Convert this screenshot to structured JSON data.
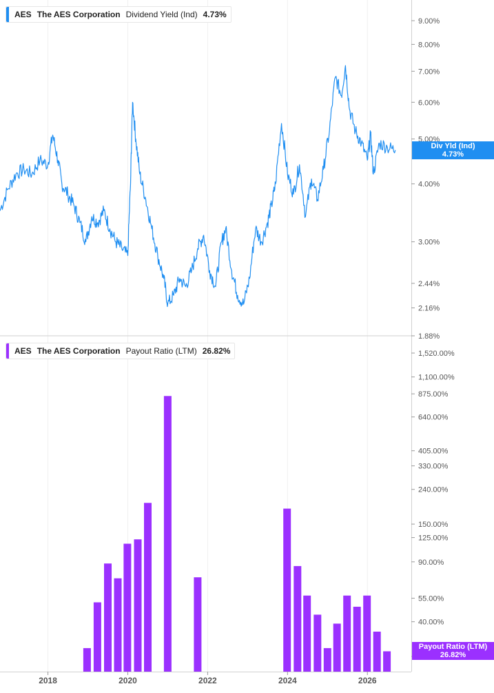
{
  "chart_data": [
    {
      "type": "line",
      "ticker": "AES",
      "company": "The AES Corporation",
      "metric": "Dividend Yield (Ind)",
      "current_value": "4.73%",
      "tag_label": "Div Yld (Ind)",
      "tag_value": "4.73%",
      "color": "#1f8ef1",
      "y_scale": "log",
      "y_ticks": [
        "9.00%",
        "8.00%",
        "7.00%",
        "6.00%",
        "5.00%",
        "4.00%",
        "3.00%",
        "2.44%",
        "2.16%",
        "1.88%"
      ],
      "y_tick_values": [
        9.0,
        8.0,
        7.0,
        6.0,
        5.0,
        4.0,
        3.0,
        2.44,
        2.16,
        1.88
      ],
      "x": [
        2016.8,
        2017.0,
        2017.2,
        2017.4,
        2017.6,
        2017.8,
        2018.0,
        2018.12,
        2018.25,
        2018.35,
        2018.5,
        2018.65,
        2018.8,
        2018.95,
        2019.1,
        2019.25,
        2019.4,
        2019.55,
        2019.7,
        2019.85,
        2020.0,
        2020.07,
        2020.12,
        2020.2,
        2020.3,
        2020.45,
        2020.6,
        2020.75,
        2020.9,
        2021.0,
        2021.15,
        2021.3,
        2021.45,
        2021.6,
        2021.75,
        2021.9,
        2022.05,
        2022.2,
        2022.35,
        2022.45,
        2022.6,
        2022.75,
        2022.9,
        2023.05,
        2023.2,
        2023.35,
        2023.5,
        2023.6,
        2023.7,
        2023.85,
        2024.0,
        2024.15,
        2024.3,
        2024.45,
        2024.6,
        2024.75,
        2024.9,
        2025.05,
        2025.2,
        2025.35,
        2025.45,
        2025.55,
        2025.7,
        2025.85,
        2026.0,
        2026.08,
        2026.15,
        2026.3,
        2026.5,
        2026.7
      ],
      "values": [
        3.5,
        3.9,
        4.2,
        4.3,
        4.2,
        4.5,
        4.4,
        5.1,
        4.5,
        4.0,
        3.8,
        3.6,
        3.3,
        3.0,
        3.4,
        3.3,
        3.5,
        3.2,
        3.0,
        2.9,
        2.8,
        4.0,
        6.0,
        5.0,
        4.2,
        3.7,
        3.2,
        2.8,
        2.5,
        2.2,
        2.3,
        2.5,
        2.4,
        2.6,
        2.9,
        3.1,
        2.6,
        2.4,
        3.0,
        3.2,
        2.6,
        2.3,
        2.2,
        2.5,
        3.2,
        3.0,
        3.3,
        3.6,
        4.0,
        5.4,
        4.2,
        3.8,
        4.4,
        3.4,
        4.1,
        3.7,
        4.3,
        5.2,
        6.8,
        6.2,
        7.2,
        5.8,
        5.2,
        4.9,
        4.5,
        5.1,
        4.2,
        4.9,
        4.8,
        4.73
      ]
    },
    {
      "type": "bar",
      "ticker": "AES",
      "company": "The AES Corporation",
      "metric": "Payout Ratio (LTM)",
      "current_value": "26.82%",
      "tag_label": "Payout Ratio (LTM)",
      "tag_value": "26.82%",
      "color": "#9b30ff",
      "y_scale": "log",
      "y_ticks": [
        "1,520.00%",
        "1,100.00%",
        "875.00%",
        "640.00%",
        "405.00%",
        "330.00%",
        "240.00%",
        "150.00%",
        "125.00%",
        "90.00%",
        "55.00%",
        "40.00%",
        "25.00%"
      ],
      "y_tick_values": [
        1520,
        1100,
        875,
        640,
        405,
        330,
        240,
        150,
        125,
        90,
        55,
        40,
        25
      ],
      "x": [
        2018.98,
        2019.24,
        2019.5,
        2019.75,
        2019.99,
        2020.25,
        2020.5,
        2021.0,
        2021.75,
        2023.99,
        2024.25,
        2024.49,
        2024.75,
        2025.0,
        2025.24,
        2025.49,
        2025.74,
        2025.99,
        2026.24,
        2026.49
      ],
      "values": [
        28,
        52,
        88,
        72,
        115,
        122,
        200,
        850,
        73,
        185,
        85,
        57,
        44,
        28,
        39,
        57,
        49,
        57,
        35,
        26.82
      ]
    }
  ],
  "x_axis": {
    "ticks": [
      "2018",
      "2020",
      "2022",
      "2024",
      "2026"
    ],
    "tick_values": [
      2018,
      2020,
      2022,
      2024,
      2026
    ],
    "range": [
      2016.8,
      2027.1
    ]
  }
}
